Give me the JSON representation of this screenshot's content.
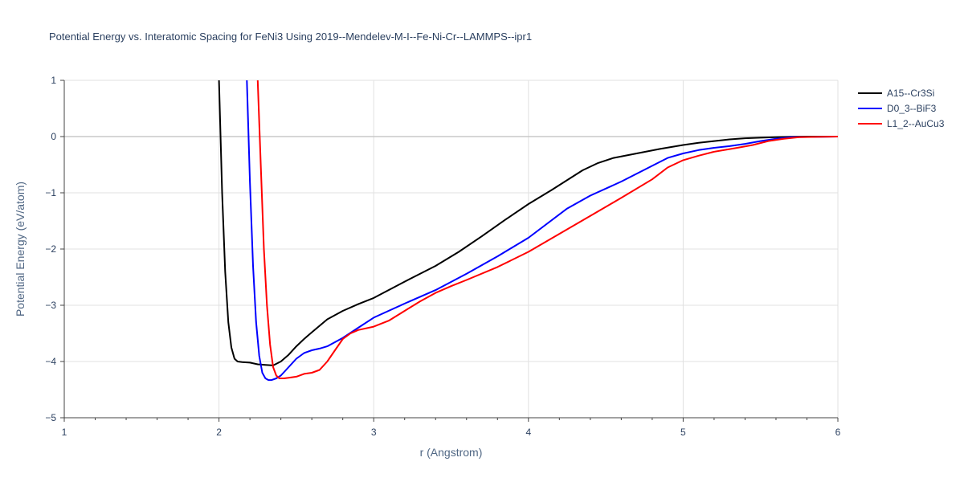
{
  "chart_data": {
    "type": "line",
    "title": "Potential Energy vs. Interatomic Spacing for FeNi3 Using 2019--Mendelev-M-I--Fe-Ni-Cr--LAMMPS--ipr1",
    "xlabel": "r (Angstrom)",
    "ylabel": "Potential Energy (eV/atom)",
    "xlim": [
      1,
      6
    ],
    "ylim": [
      -5,
      1
    ],
    "xticks": [
      1,
      2,
      3,
      4,
      5,
      6
    ],
    "yticks": [
      -5,
      -4,
      -3,
      -2,
      -1,
      0,
      1
    ],
    "xtick_labels": [
      "1",
      "2",
      "3",
      "4",
      "5",
      "6"
    ],
    "ytick_labels": [
      "−5",
      "−4",
      "−3",
      "−2",
      "−1",
      "0",
      "1"
    ],
    "grid": true,
    "legend": "top-right",
    "series": [
      {
        "name": "A15--Cr3Si",
        "color": "#000000",
        "x": [
          2.0,
          2.02,
          2.04,
          2.06,
          2.08,
          2.1,
          2.12,
          2.15,
          2.2,
          2.25,
          2.3,
          2.35,
          2.4,
          2.45,
          2.5,
          2.55,
          2.6,
          2.7,
          2.8,
          2.9,
          3.0,
          3.2,
          3.4,
          3.55,
          3.7,
          3.85,
          4.0,
          4.15,
          4.35,
          4.45,
          4.55,
          4.7,
          4.85,
          5.0,
          5.1,
          5.2,
          5.3,
          5.4,
          5.5,
          5.6,
          5.7,
          5.8,
          6.0
        ],
        "y": [
          1.0,
          -1.0,
          -2.4,
          -3.3,
          -3.75,
          -3.95,
          -4.0,
          -4.01,
          -4.02,
          -4.05,
          -4.06,
          -4.07,
          -4.0,
          -3.88,
          -3.73,
          -3.6,
          -3.48,
          -3.25,
          -3.1,
          -2.98,
          -2.87,
          -2.58,
          -2.3,
          -2.05,
          -1.77,
          -1.48,
          -1.2,
          -0.95,
          -0.6,
          -0.47,
          -0.38,
          -0.3,
          -0.22,
          -0.15,
          -0.11,
          -0.08,
          -0.05,
          -0.03,
          -0.02,
          -0.01,
          -0.005,
          0.0,
          0.0
        ]
      },
      {
        "name": "D0_3--BiF3",
        "color": "#0000ff",
        "x": [
          2.18,
          2.2,
          2.22,
          2.24,
          2.26,
          2.28,
          2.3,
          2.32,
          2.34,
          2.37,
          2.4,
          2.45,
          2.5,
          2.55,
          2.6,
          2.65,
          2.7,
          2.8,
          2.9,
          3.0,
          3.2,
          3.4,
          3.6,
          3.8,
          4.0,
          4.25,
          4.4,
          4.6,
          4.8,
          4.9,
          5.0,
          5.1,
          5.2,
          5.3,
          5.4,
          5.5,
          5.6,
          5.7,
          6.0
        ],
        "y": [
          1.0,
          -0.8,
          -2.3,
          -3.3,
          -3.9,
          -4.2,
          -4.3,
          -4.33,
          -4.33,
          -4.3,
          -4.25,
          -4.1,
          -3.95,
          -3.85,
          -3.8,
          -3.77,
          -3.73,
          -3.58,
          -3.4,
          -3.22,
          -2.97,
          -2.73,
          -2.44,
          -2.13,
          -1.8,
          -1.28,
          -1.05,
          -0.8,
          -0.52,
          -0.38,
          -0.3,
          -0.24,
          -0.2,
          -0.17,
          -0.13,
          -0.08,
          -0.04,
          -0.01,
          0.0
        ]
      },
      {
        "name": "L1_2--AuCu3",
        "color": "#ff0000",
        "x": [
          2.25,
          2.27,
          2.29,
          2.31,
          2.33,
          2.35,
          2.37,
          2.39,
          2.42,
          2.45,
          2.5,
          2.55,
          2.6,
          2.65,
          2.7,
          2.75,
          2.8,
          2.85,
          2.9,
          3.0,
          3.1,
          3.2,
          3.3,
          3.4,
          3.5,
          3.6,
          3.8,
          4.0,
          4.2,
          4.4,
          4.6,
          4.8,
          4.9,
          5.0,
          5.1,
          5.2,
          5.35,
          5.45,
          5.55,
          5.65,
          5.75,
          6.0
        ],
        "y": [
          1.0,
          -0.5,
          -2.0,
          -3.0,
          -3.7,
          -4.1,
          -4.25,
          -4.3,
          -4.3,
          -4.29,
          -4.27,
          -4.22,
          -4.2,
          -4.15,
          -4.0,
          -3.8,
          -3.6,
          -3.5,
          -3.44,
          -3.38,
          -3.27,
          -3.1,
          -2.93,
          -2.78,
          -2.66,
          -2.55,
          -2.32,
          -2.05,
          -1.73,
          -1.41,
          -1.09,
          -0.76,
          -0.55,
          -0.42,
          -0.34,
          -0.27,
          -0.2,
          -0.15,
          -0.08,
          -0.04,
          -0.01,
          0.0
        ]
      }
    ]
  }
}
